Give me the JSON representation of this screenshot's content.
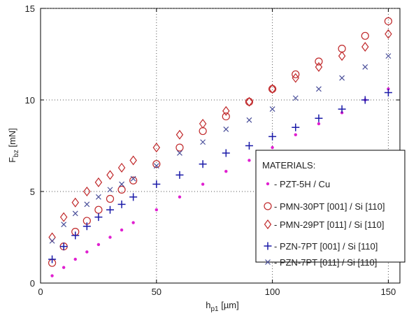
{
  "chart_data": {
    "type": "scatter",
    "xlabel": "h",
    "xlabel_sub": "p1",
    "xlabel_unit": " [µm]",
    "ylabel": "F",
    "ylabel_sub": "bz",
    "ylabel_unit": " [mN]",
    "xlim": [
      0,
      155
    ],
    "ylim": [
      0,
      15
    ],
    "xticks": [
      0,
      50,
      100,
      150
    ],
    "yticks": [
      0,
      5,
      10,
      15
    ],
    "grid": true,
    "legend_title": "MATERIALS:",
    "legend_position": "bottom-right",
    "x": [
      5,
      10,
      15,
      20,
      25,
      30,
      35,
      40,
      50,
      60,
      70,
      80,
      90,
      100,
      110,
      120,
      130,
      140,
      150
    ],
    "series": [
      {
        "name": " - PZT-5H / Cu",
        "marker": "dot",
        "color": "#e020d0",
        "values": [
          0.4,
          0.85,
          1.3,
          1.7,
          2.1,
          2.5,
          2.9,
          3.3,
          4.0,
          4.7,
          5.4,
          6.1,
          6.7,
          7.4,
          8.1,
          8.7,
          9.3,
          10.0,
          10.6
        ]
      },
      {
        "name": " - PMN-30PT [001] / Si [110]",
        "marker": "circle",
        "color": "#c0282a",
        "values": [
          1.1,
          2.0,
          2.8,
          3.4,
          4.0,
          4.6,
          5.1,
          5.6,
          6.5,
          7.4,
          8.3,
          9.1,
          9.9,
          10.6,
          11.4,
          12.1,
          12.8,
          13.5,
          14.3
        ]
      },
      {
        "name": " - PMN-29PT [011] / Si [110]",
        "marker": "diamond",
        "color": "#c0282a",
        "values": [
          2.5,
          3.6,
          4.4,
          5.0,
          5.5,
          5.9,
          6.3,
          6.7,
          7.4,
          8.1,
          8.7,
          9.4,
          9.9,
          10.6,
          11.2,
          11.8,
          12.4,
          12.9,
          13.6
        ]
      },
      {
        "name": " - PZN-7PT [001] / Si [110]",
        "marker": "plus",
        "color": "#1a1aa8",
        "values": [
          1.3,
          2.0,
          2.6,
          3.1,
          3.6,
          4.0,
          4.3,
          4.7,
          5.4,
          5.9,
          6.5,
          7.1,
          7.5,
          8.0,
          8.5,
          9.0,
          9.5,
          10.0,
          10.4
        ]
      },
      {
        "name": " - PZN-7PT [011] / Si [110]",
        "marker": "cross",
        "color": "#4a4f9a",
        "values": [
          2.3,
          3.2,
          3.8,
          4.3,
          4.7,
          5.1,
          5.4,
          5.7,
          6.4,
          7.1,
          7.7,
          8.4,
          8.9,
          9.5,
          10.1,
          10.6,
          11.2,
          11.8,
          12.4
        ]
      }
    ]
  }
}
